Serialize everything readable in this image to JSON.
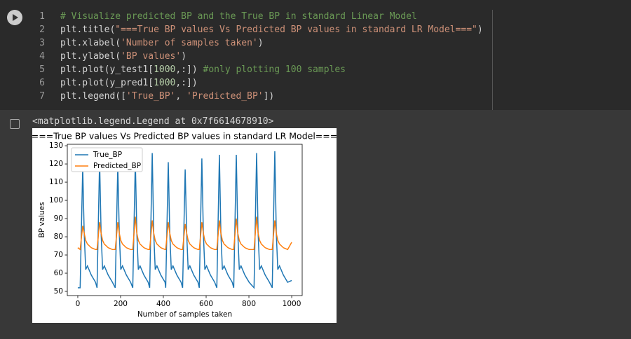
{
  "code_cell": {
    "lines": [
      {
        "number": 1,
        "segments": [
          {
            "text": "# Visualize predicted BP and the True BP in standard Linear Model",
            "color": "#6a9955"
          }
        ]
      },
      {
        "number": 2,
        "segments": [
          {
            "text": "plt.title(",
            "color": "#d4d4d4"
          },
          {
            "text": "\"===True BP values Vs Predicted BP values in standard LR Model===\"",
            "color": "#ce9178"
          },
          {
            "text": ")",
            "color": "#d4d4d4"
          }
        ]
      },
      {
        "number": 3,
        "segments": [
          {
            "text": "plt.xlabel(",
            "color": "#d4d4d4"
          },
          {
            "text": "'Number of samples taken'",
            "color": "#ce9178"
          },
          {
            "text": ")",
            "color": "#d4d4d4"
          }
        ]
      },
      {
        "number": 4,
        "segments": [
          {
            "text": "plt.ylabel(",
            "color": "#d4d4d4"
          },
          {
            "text": "'BP values'",
            "color": "#ce9178"
          },
          {
            "text": ")",
            "color": "#d4d4d4"
          }
        ]
      },
      {
        "number": 5,
        "segments": [
          {
            "text": "plt.plot(y_test1[",
            "color": "#d4d4d4"
          },
          {
            "text": "1000",
            "color": "#b5cea8"
          },
          {
            "text": ",:]) ",
            "color": "#d4d4d4"
          },
          {
            "text": "#only plotting 100 samples",
            "color": "#6a9955"
          }
        ]
      },
      {
        "number": 6,
        "segments": [
          {
            "text": "plt.plot(y_pred1[",
            "color": "#d4d4d4"
          },
          {
            "text": "1000",
            "color": "#b5cea8"
          },
          {
            "text": ",:])",
            "color": "#d4d4d4"
          }
        ]
      },
      {
        "number": 7,
        "segments": [
          {
            "text": "plt.legend([",
            "color": "#d4d4d4"
          },
          {
            "text": "'True_BP'",
            "color": "#ce9178"
          },
          {
            "text": ", ",
            "color": "#d4d4d4"
          },
          {
            "text": "'Predicted_BP'",
            "color": "#ce9178"
          },
          {
            "text": "])",
            "color": "#d4d4d4"
          }
        ]
      }
    ]
  },
  "output": {
    "text": "<matplotlib.legend.Legend at 0x7f6614678910>"
  },
  "chart_data": {
    "type": "line",
    "title": "===True BP values Vs Predicted BP values in standard LR Model===",
    "xlabel": "Number of samples taken",
    "ylabel": "BP values",
    "x": [
      0,
      11,
      23,
      30,
      37,
      45,
      63,
      83,
      90,
      102,
      109,
      116,
      124,
      142,
      162,
      175,
      187,
      194,
      201,
      209,
      227,
      247,
      257,
      269,
      276,
      283,
      291,
      309,
      329,
      336,
      348,
      355,
      362,
      370,
      388,
      408,
      411,
      423,
      430,
      437,
      445,
      463,
      483,
      490,
      502,
      509,
      516,
      524,
      542,
      562,
      568,
      580,
      587,
      594,
      602,
      620,
      640,
      650,
      662,
      669,
      676,
      684,
      702,
      722,
      729,
      741,
      748,
      755,
      763,
      781,
      801,
      824,
      836,
      843,
      850,
      858,
      876,
      896,
      909,
      921,
      928,
      935,
      943,
      961,
      981,
      1000
    ],
    "series": [
      {
        "name": "True_BP",
        "color": "#1f77b4",
        "values": [
          52,
          52,
          118,
          82,
          62,
          64,
          59,
          55,
          52,
          122,
          82,
          62,
          64,
          59,
          55,
          52,
          119,
          82,
          62,
          64,
          59,
          55,
          52,
          122,
          82,
          62,
          64,
          59,
          55,
          52,
          126,
          82,
          62,
          64,
          59,
          55,
          52,
          121,
          82,
          62,
          64,
          59,
          55,
          52,
          117,
          82,
          62,
          64,
          59,
          55,
          52,
          123,
          82,
          62,
          64,
          59,
          55,
          52,
          125,
          82,
          62,
          64,
          59,
          55,
          52,
          125,
          82,
          62,
          64,
          59,
          55,
          52,
          126,
          82,
          62,
          64,
          59,
          55,
          52,
          127,
          82,
          62,
          64,
          59,
          55,
          56
        ]
      },
      {
        "name": "Predicted_BP",
        "color": "#ff7f0e",
        "values": [
          74,
          73,
          86,
          82,
          78,
          76,
          74,
          73,
          73,
          88,
          82,
          78,
          76,
          74,
          73,
          73,
          88,
          82,
          78,
          76,
          74,
          73,
          73,
          91,
          82,
          78,
          76,
          74,
          73,
          73,
          89,
          82,
          78,
          76,
          74,
          73,
          73,
          88,
          82,
          78,
          76,
          74,
          73,
          73,
          87,
          82,
          78,
          76,
          74,
          73,
          73,
          88,
          82,
          78,
          76,
          74,
          73,
          73,
          89,
          82,
          78,
          76,
          74,
          73,
          73,
          90,
          82,
          78,
          76,
          74,
          73,
          73,
          91,
          82,
          78,
          76,
          74,
          73,
          73,
          89,
          82,
          78,
          76,
          74,
          73,
          77
        ]
      }
    ],
    "xlim": [
      -49,
      1049
    ],
    "ylim": [
      47.7,
      130.8
    ],
    "xticks": [
      0,
      200,
      400,
      600,
      800,
      1000
    ],
    "yticks": [
      50,
      60,
      70,
      80,
      90,
      100,
      110,
      120,
      130
    ],
    "legend": "upper left"
  }
}
